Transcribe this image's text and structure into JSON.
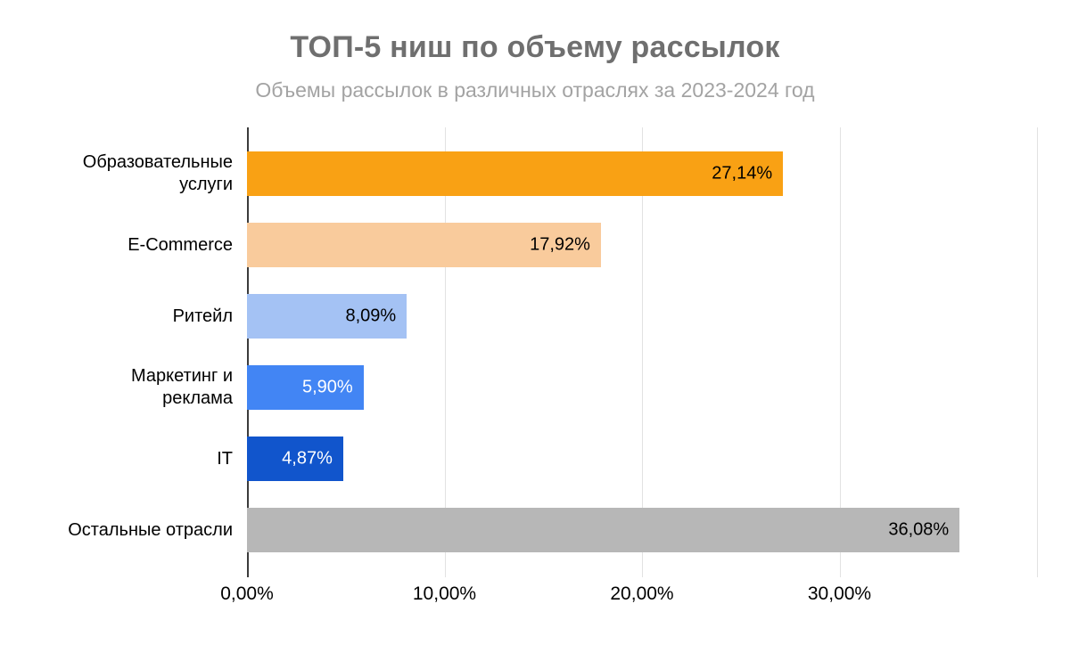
{
  "header": {
    "title": "ТОП-5 ниш по объему рассылок",
    "subtitle": "Объемы рассылок в различных отраслях за 2023-2024 год"
  },
  "chart_data": {
    "type": "bar",
    "orientation": "horizontal",
    "title": "ТОП-5 ниш по объему рассылок",
    "subtitle": "Объемы рассылок в различных отраслях за 2023-2024 год",
    "categories": [
      "Образовательные услуги",
      "E-Commerce",
      "Ритейл",
      "Маркетинг и реклама",
      "IT",
      "Остальные отрасли"
    ],
    "category_display": [
      "Образовательные\nуслуги",
      "E-Commerce",
      "Ритейл",
      "Маркетинг и\nреклама",
      "IT",
      "Остальные отрасли"
    ],
    "values": [
      27.14,
      17.92,
      8.09,
      5.9,
      4.87,
      36.08
    ],
    "value_labels": [
      "27,14%",
      "17,92%",
      "8,09%",
      "5,90%",
      "4,87%",
      "36,08%"
    ],
    "bar_colors": [
      "#f9a114",
      "#f9cb9c",
      "#a4c2f4",
      "#4285f4",
      "#1155cc",
      "#b7b7b7"
    ],
    "value_label_colors": [
      "#000000",
      "#000000",
      "#000000",
      "#ffffff",
      "#ffffff",
      "#000000"
    ],
    "xlim": [
      0,
      40
    ],
    "x_ticks": [
      {
        "value": 0,
        "label": "0,00%"
      },
      {
        "value": 10,
        "label": "10,00%"
      },
      {
        "value": 20,
        "label": "20,00%"
      },
      {
        "value": 30,
        "label": "30,00%"
      },
      {
        "value": 40,
        "label": ""
      }
    ],
    "grid": "vertical",
    "xlabel": "",
    "ylabel": ""
  }
}
